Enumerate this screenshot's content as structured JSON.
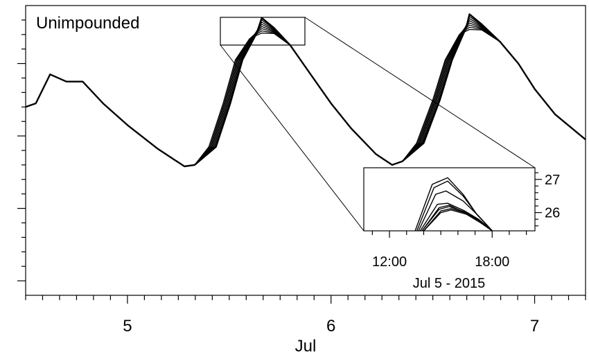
{
  "chart_data": [
    {
      "type": "line",
      "title": "Unimpounded",
      "xlabel": "Jul",
      "ylabel": "",
      "x_unit": "day of July 2015",
      "xlim": [
        4.5,
        7.25
      ],
      "ylim": [
        23.8,
        27.8
      ],
      "y_ticks_labeled": false,
      "x_ticks": [
        5,
        6,
        7
      ],
      "x_tick_labels": [
        "5",
        "6",
        "7"
      ],
      "grid": false,
      "series_count": 8,
      "base_series": {
        "x": [
          4.5,
          4.55,
          4.62,
          4.7,
          4.78,
          4.88,
          5.0,
          5.15,
          5.28,
          5.33,
          5.4,
          5.47,
          5.53,
          5.6,
          5.66,
          5.72,
          5.8,
          5.9,
          6.0,
          6.1,
          6.22,
          6.3,
          6.35,
          6.42,
          6.5,
          6.56,
          6.63,
          6.68,
          6.74,
          6.83,
          6.92,
          7.0,
          7.1,
          7.25
        ],
        "y": [
          26.4,
          26.45,
          26.85,
          26.75,
          26.75,
          26.45,
          26.15,
          25.82,
          25.58,
          25.6,
          25.85,
          26.45,
          27.05,
          27.38,
          27.52,
          27.45,
          27.25,
          26.85,
          26.45,
          26.1,
          25.75,
          25.6,
          25.65,
          25.9,
          26.5,
          27.05,
          27.45,
          27.57,
          27.5,
          27.3,
          27.0,
          26.65,
          26.3,
          25.95
        ]
      },
      "peak_spread": [
        0.0,
        0.03,
        0.06,
        0.09,
        0.12,
        0.15,
        0.18,
        0.21
      ],
      "rise_delay_days": [
        0.0,
        0.005,
        0.01,
        0.015,
        0.02,
        0.025,
        0.03,
        0.035
      ]
    },
    {
      "type": "line",
      "title": "",
      "xlabel": "Jul 5 - 2015",
      "ylabel": "",
      "x_unit": "hour of Jul 5, 2015",
      "xlim": [
        10.5,
        20.5
      ],
      "ylim": [
        25.45,
        27.35
      ],
      "x_ticks": [
        12,
        18
      ],
      "x_tick_labels": [
        "12:00",
        "18:00"
      ],
      "y_ticks": [
        26,
        27
      ],
      "y_tick_labels": [
        "26",
        "27"
      ],
      "grid": false,
      "series": [
        {
          "x": [
            13.5,
            14.5,
            15.4,
            16.3,
            17.1,
            18.0
          ],
          "y": [
            25.45,
            26.85,
            27.05,
            26.55,
            25.95,
            25.45
          ]
        },
        {
          "x": [
            13.6,
            14.6,
            15.4,
            16.3,
            17.1,
            18.0
          ],
          "y": [
            25.45,
            26.75,
            26.95,
            26.5,
            25.95,
            25.45
          ]
        },
        {
          "x": [
            13.7,
            14.7,
            15.3,
            16.3,
            17.2,
            18.0
          ],
          "y": [
            25.45,
            26.55,
            26.65,
            26.35,
            25.9,
            25.45
          ]
        },
        {
          "x": [
            13.8,
            14.8,
            15.4,
            16.4,
            17.2,
            18.0
          ],
          "y": [
            25.45,
            26.25,
            26.28,
            26.05,
            25.8,
            25.45
          ]
        },
        {
          "x": [
            13.9,
            14.9,
            15.5,
            16.4,
            17.3,
            18.0
          ],
          "y": [
            25.45,
            26.15,
            26.22,
            26.0,
            25.75,
            25.45
          ]
        },
        {
          "x": [
            13.9,
            14.9,
            15.5,
            16.5,
            17.3,
            18.0
          ],
          "y": [
            25.45,
            26.1,
            26.18,
            26.0,
            25.75,
            25.45
          ]
        },
        {
          "x": [
            14.0,
            15.0,
            15.6,
            16.5,
            17.3,
            18.0
          ],
          "y": [
            25.45,
            26.05,
            26.12,
            25.98,
            25.72,
            25.45
          ]
        },
        {
          "x": [
            14.0,
            15.0,
            15.6,
            16.5,
            17.3,
            18.0
          ],
          "y": [
            25.45,
            26.0,
            26.08,
            25.95,
            25.7,
            25.45
          ]
        }
      ]
    }
  ]
}
